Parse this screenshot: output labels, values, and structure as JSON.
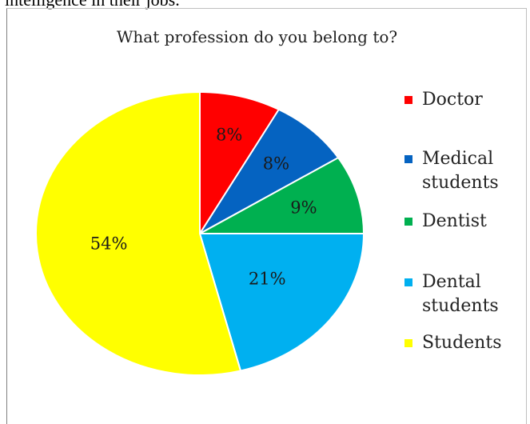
{
  "header_text": "intelligence in their jobs.",
  "chart_data": {
    "type": "pie",
    "title": "What profession do you belong to?",
    "categories": [
      "Doctor",
      "Medical students",
      "Dentist",
      "Dental students",
      "Students"
    ],
    "values": [
      8,
      8,
      9,
      21,
      54
    ],
    "value_labels": [
      "8%",
      "8%",
      "9%",
      "21%",
      "54%"
    ],
    "colors": [
      "#ff0000",
      "#0563c1",
      "#00b050",
      "#00b0f0",
      "#ffff00"
    ],
    "legend_position": "right"
  },
  "legend": [
    {
      "label": "Doctor",
      "color": "#ff0000"
    },
    {
      "label": "Medical students",
      "color": "#0563c1"
    },
    {
      "label": "Dentist",
      "color": "#00b050"
    },
    {
      "label": "Dental students",
      "color": "#00b0f0"
    },
    {
      "label": "Students",
      "color": "#ffff00"
    }
  ]
}
